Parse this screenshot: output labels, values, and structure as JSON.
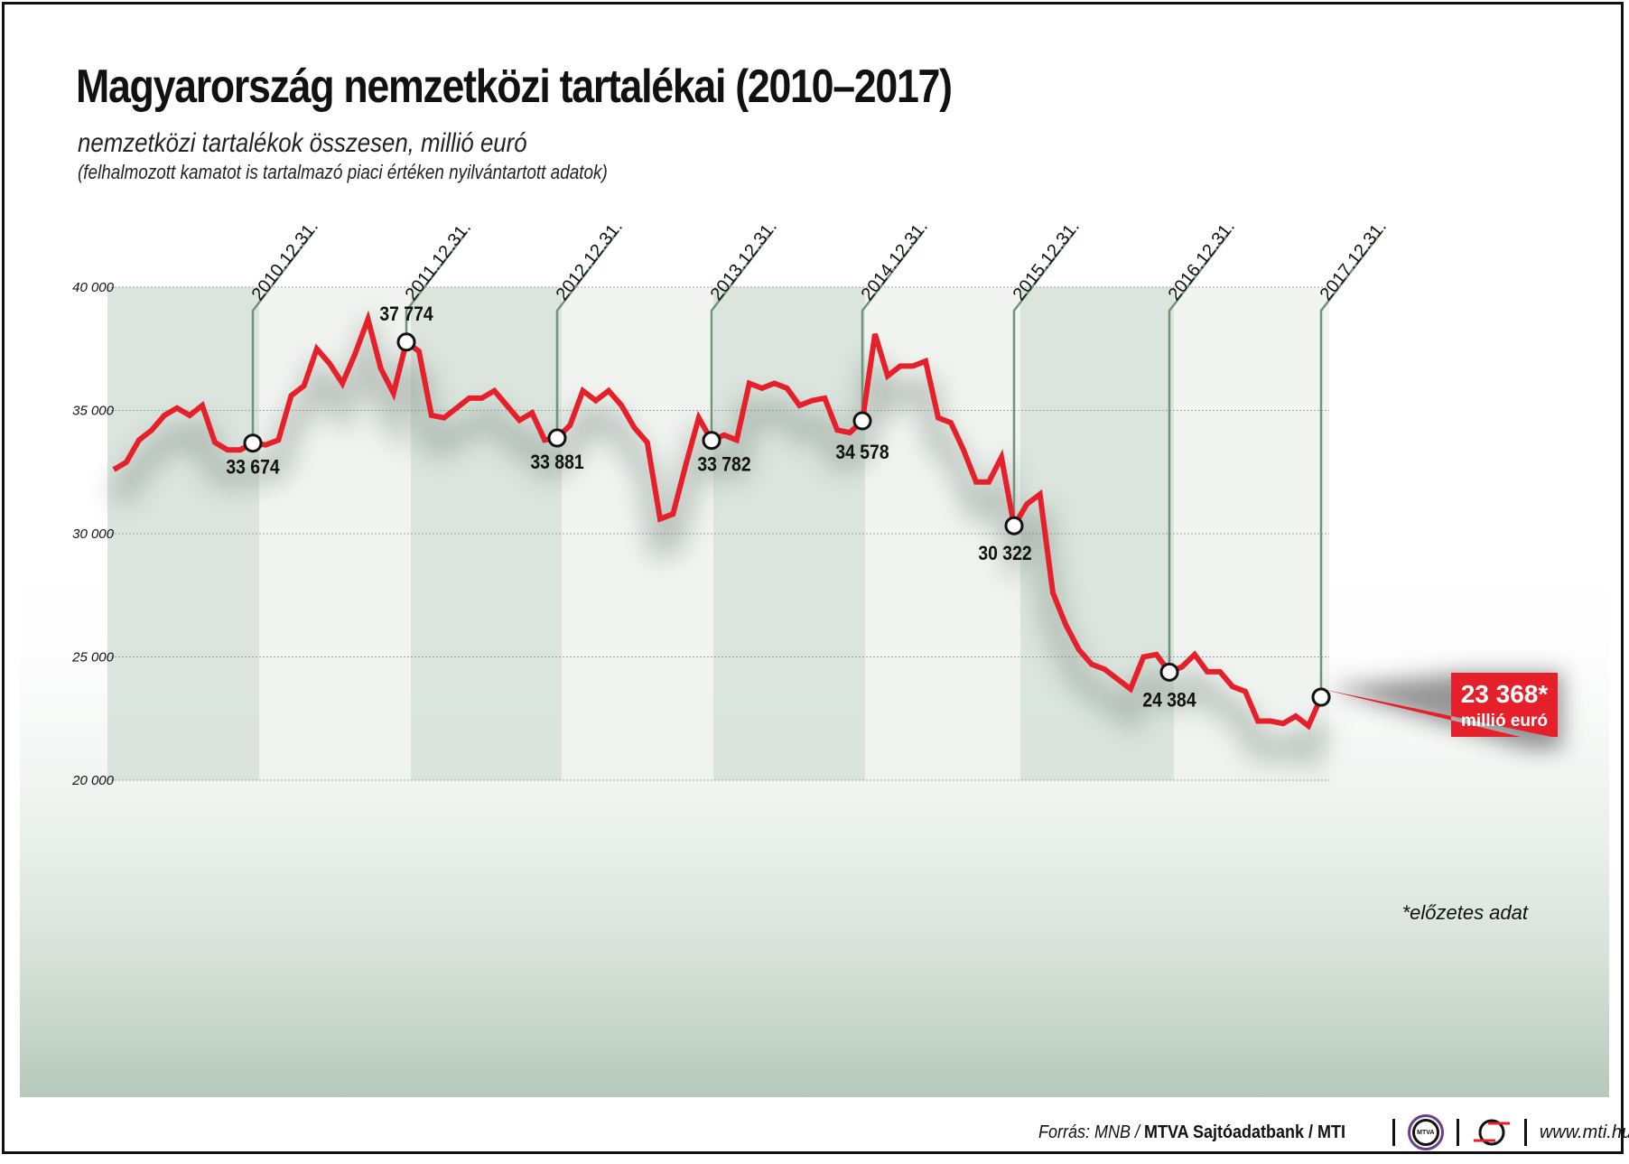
{
  "header": {
    "title": "Magyarország nemzetközi tartalékai (2010–2017)",
    "subtitle": "nemzetközi tartalékok összesen, millió euró",
    "note": "(felhalmozott kamatot is tartalmazó piaci értéken nyilvántartott adatok)"
  },
  "colors": {
    "line": "#e5202a",
    "band_shaded": "#d5e0d8",
    "band_light": "#eef2ef",
    "marker_line": "#6f9478",
    "grid": "#9aa89c",
    "callout": "#e5202a"
  },
  "chart_data": {
    "type": "line",
    "title": "Magyarország nemzetközi tartalékai (2010–2017)",
    "subtitle": "nemzetközi tartalékok összesen, millió euró",
    "xlabel": "",
    "ylabel": "millió euró",
    "ylim": [
      20000,
      40000
    ],
    "yticks": [
      "40 000",
      "35 000",
      "30 000",
      "25 000",
      "20 000"
    ],
    "ytick_values": [
      40000,
      35000,
      30000,
      25000,
      20000
    ],
    "grid": true,
    "x_markers": [
      "2010.12.31.",
      "2011.12.31.",
      "2012.12.31.",
      "2013.12.31.",
      "2014.12.31.",
      "2015.12.31.",
      "2016.12.31.",
      "2017.12.31."
    ],
    "annotations": [
      {
        "date": "2010.12.31.",
        "value": 33674,
        "label": "33 674"
      },
      {
        "date": "2011.12.31.",
        "value": 37774,
        "label": "37 774"
      },
      {
        "date": "2012.12.31.",
        "value": 33881,
        "label": "33 881"
      },
      {
        "date": "2013.12.31.",
        "value": 33782,
        "label": "33 782"
      },
      {
        "date": "2014.12.31.",
        "value": 34578,
        "label": "34 578"
      },
      {
        "date": "2015.12.31.",
        "value": 30322,
        "label": "30 322"
      },
      {
        "date": "2016.12.31.",
        "value": 24384,
        "label": "24 384"
      },
      {
        "date": "2017.12.31.",
        "value": 23368,
        "label": "23 368*"
      }
    ],
    "series": [
      {
        "name": "nemzetközi tartalékok összesen",
        "frequency": "monthly",
        "start": "2010-01",
        "values": [
          32600,
          32900,
          33800,
          34200,
          34800,
          35100,
          34800,
          35200,
          33700,
          33400,
          33400,
          33674,
          33600,
          33800,
          35600,
          36000,
          37500,
          36900,
          36100,
          37300,
          38700,
          36700,
          35700,
          37774,
          37400,
          34800,
          34700,
          35100,
          35500,
          35500,
          35800,
          35200,
          34600,
          34900,
          33800,
          33881,
          34400,
          35800,
          35400,
          35800,
          35200,
          34300,
          33700,
          30600,
          30800,
          32800,
          34700,
          33782,
          34000,
          33800,
          36100,
          35900,
          36100,
          35900,
          35200,
          35400,
          35500,
          34200,
          34100,
          34578,
          38100,
          36400,
          36800,
          36800,
          37000,
          34700,
          34500,
          33400,
          32100,
          32100,
          33100,
          30322,
          31200,
          31600,
          27600,
          26300,
          25300,
          24700,
          24500,
          24100,
          23700,
          25000,
          25100,
          24384,
          24600,
          25100,
          24400,
          24400,
          23800,
          23600,
          22400,
          22400,
          22300,
          22600,
          22200,
          23368
        ]
      }
    ],
    "footnote": "*előzetes adat"
  },
  "callout": {
    "value": "23 368*",
    "unit": "millió euró"
  },
  "footnote": "*előzetes adat",
  "footer": {
    "source_prefix": "Forrás: MNB / ",
    "source_bold": "MTVA Sajtóadatbank",
    "source_sep": " / ",
    "source_bold2": "MTI",
    "mtva_logo_text": "MTVA",
    "url": "www.mti.hu"
  }
}
